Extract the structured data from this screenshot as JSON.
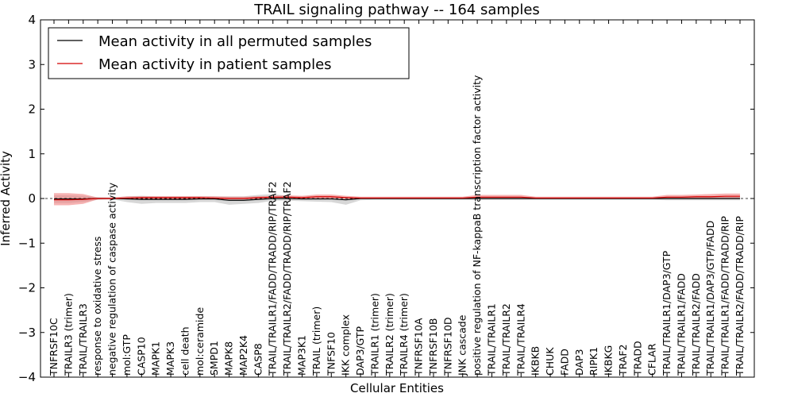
{
  "chart_data": {
    "type": "line",
    "title": "TRAIL signaling pathway -- 164 samples",
    "xlabel": "Cellular Entities",
    "ylabel": "Inferred Activity",
    "ylim": [
      -4,
      4
    ],
    "yticks": [
      -4,
      -3,
      -2,
      -1,
      0,
      1,
      2,
      3,
      4
    ],
    "ytick_labels": [
      "−4",
      "−3",
      "−2",
      "−1",
      "0",
      "1",
      "2",
      "3",
      "4"
    ],
    "legend_position": "top-left",
    "categories": [
      "TNFRSF10C",
      "TRAILR3 (trimer)",
      "TRAIL/TRAILR3",
      "response to oxidative stress",
      "negative regulation of caspase activity",
      "mol:GTP",
      "CASP10",
      "MAPK1",
      "MAPK3",
      "cell death",
      "mol:ceramide",
      "SMPD1",
      "MAPK8",
      "MAP2K4",
      "CASP8",
      "TRAIL/TRAILR1/FADD/TRADD/RIP/TRAF2",
      "TRAIL/TRAILR2/FADD/TRADD/RIP/TRAF2",
      "MAP3K1",
      "TRAIL (trimer)",
      "TNFSF10",
      "IKK complex",
      "DAP3/GTP",
      "TRAILR1 (trimer)",
      "TRAILR2 (trimer)",
      "TRAILR4 (trimer)",
      "TNFRSF10A",
      "TNFRSF10B",
      "TNFRSF10D",
      "JNK cascade",
      "positive regulation of NF-kappaB transcription factor activity",
      "TRAIL/TRAILR1",
      "TRAIL/TRAILR2",
      "TRAIL/TRAILR4",
      "IKBKB",
      "CHUK",
      "FADD",
      "DAP3",
      "RIPK1",
      "IKBKG",
      "TRAF2",
      "TRADD",
      "CFLAR",
      "TRAIL/TRAILR1/DAP3/GTP",
      "TRAIL/TRAILR1/FADD",
      "TRAIL/TRAILR2/FADD",
      "TRAIL/TRAILR1/DAP3/GTP/FADD",
      "TRAIL/TRAILR1/FADD/TRADD/RIP",
      "TRAIL/TRAILR2/FADD/TRADD/RIP"
    ],
    "series": [
      {
        "name": "Mean activity in all permuted samples",
        "color": "#000000",
        "band_color": "#b0b0b0",
        "values": [
          -0.01,
          -0.01,
          -0.01,
          0.0,
          0.0,
          -0.01,
          -0.02,
          -0.02,
          -0.02,
          -0.02,
          -0.01,
          -0.01,
          -0.04,
          -0.04,
          -0.02,
          0.0,
          0.0,
          -0.01,
          -0.01,
          -0.01,
          -0.03,
          0.0,
          0.0,
          0.0,
          0.0,
          0.0,
          0.0,
          0.0,
          0.0,
          0.0,
          0.0,
          0.0,
          0.0,
          0.0,
          0.0,
          0.0,
          0.0,
          0.0,
          0.0,
          0.0,
          0.0,
          0.0,
          0.0,
          0.0,
          0.0,
          0.0,
          0.0,
          0.0
        ],
        "band_lower": [
          -0.1,
          -0.1,
          -0.08,
          -0.03,
          -0.02,
          -0.08,
          -0.12,
          -0.1,
          -0.1,
          -0.1,
          -0.08,
          -0.08,
          -0.14,
          -0.12,
          -0.1,
          -0.05,
          -0.05,
          -0.06,
          -0.07,
          -0.08,
          -0.14,
          -0.04,
          -0.03,
          -0.03,
          -0.03,
          -0.03,
          -0.03,
          -0.03,
          -0.03,
          -0.03,
          -0.03,
          -0.03,
          -0.03,
          -0.03,
          -0.03,
          -0.03,
          -0.03,
          -0.03,
          -0.03,
          -0.03,
          -0.03,
          -0.03,
          -0.04,
          -0.04,
          -0.04,
          -0.04,
          -0.04,
          -0.04
        ],
        "band_upper": [
          0.07,
          0.07,
          0.06,
          0.03,
          0.02,
          0.05,
          0.06,
          0.05,
          0.05,
          0.05,
          0.05,
          0.05,
          0.05,
          0.05,
          0.08,
          0.1,
          0.06,
          0.04,
          0.04,
          0.04,
          0.03,
          0.03,
          0.03,
          0.03,
          0.03,
          0.03,
          0.03,
          0.03,
          0.03,
          0.03,
          0.03,
          0.03,
          0.03,
          0.03,
          0.03,
          0.03,
          0.03,
          0.03,
          0.03,
          0.03,
          0.03,
          0.03,
          0.04,
          0.04,
          0.04,
          0.04,
          0.04,
          0.04
        ]
      },
      {
        "name": "Mean activity in patient samples",
        "color": "#d40000",
        "band_color": "#f08080",
        "values": [
          -0.03,
          -0.03,
          -0.02,
          0.0,
          0.0,
          0.01,
          0.02,
          0.02,
          0.02,
          0.02,
          0.02,
          0.01,
          0.0,
          0.0,
          0.02,
          0.03,
          0.03,
          0.02,
          0.04,
          0.04,
          0.02,
          0.01,
          0.01,
          0.01,
          0.01,
          0.01,
          0.01,
          0.01,
          0.01,
          0.03,
          0.03,
          0.03,
          0.03,
          0.01,
          0.01,
          0.01,
          0.01,
          0.01,
          0.01,
          0.01,
          0.01,
          0.01,
          0.03,
          0.03,
          0.04,
          0.04,
          0.05,
          0.05
        ],
        "band_lower": [
          -0.15,
          -0.15,
          -0.12,
          -0.02,
          -0.01,
          -0.02,
          -0.02,
          -0.02,
          -0.02,
          -0.02,
          -0.02,
          -0.02,
          -0.02,
          -0.02,
          -0.01,
          0.0,
          0.0,
          0.0,
          0.0,
          0.0,
          -0.01,
          0.0,
          0.0,
          0.0,
          0.0,
          0.0,
          0.0,
          0.0,
          0.0,
          0.0,
          0.0,
          0.0,
          0.0,
          0.0,
          0.0,
          0.0,
          0.0,
          0.0,
          0.0,
          0.0,
          0.0,
          0.0,
          0.0,
          0.0,
          0.0,
          0.0,
          0.0,
          0.0
        ],
        "band_upper": [
          0.12,
          0.12,
          0.1,
          0.02,
          0.02,
          0.05,
          0.05,
          0.05,
          0.05,
          0.05,
          0.05,
          0.05,
          0.04,
          0.04,
          0.05,
          0.06,
          0.07,
          0.06,
          0.09,
          0.09,
          0.06,
          0.04,
          0.04,
          0.04,
          0.04,
          0.04,
          0.04,
          0.04,
          0.04,
          0.08,
          0.08,
          0.08,
          0.08,
          0.04,
          0.04,
          0.04,
          0.04,
          0.04,
          0.04,
          0.04,
          0.04,
          0.04,
          0.08,
          0.08,
          0.09,
          0.1,
          0.11,
          0.11
        ]
      }
    ]
  }
}
